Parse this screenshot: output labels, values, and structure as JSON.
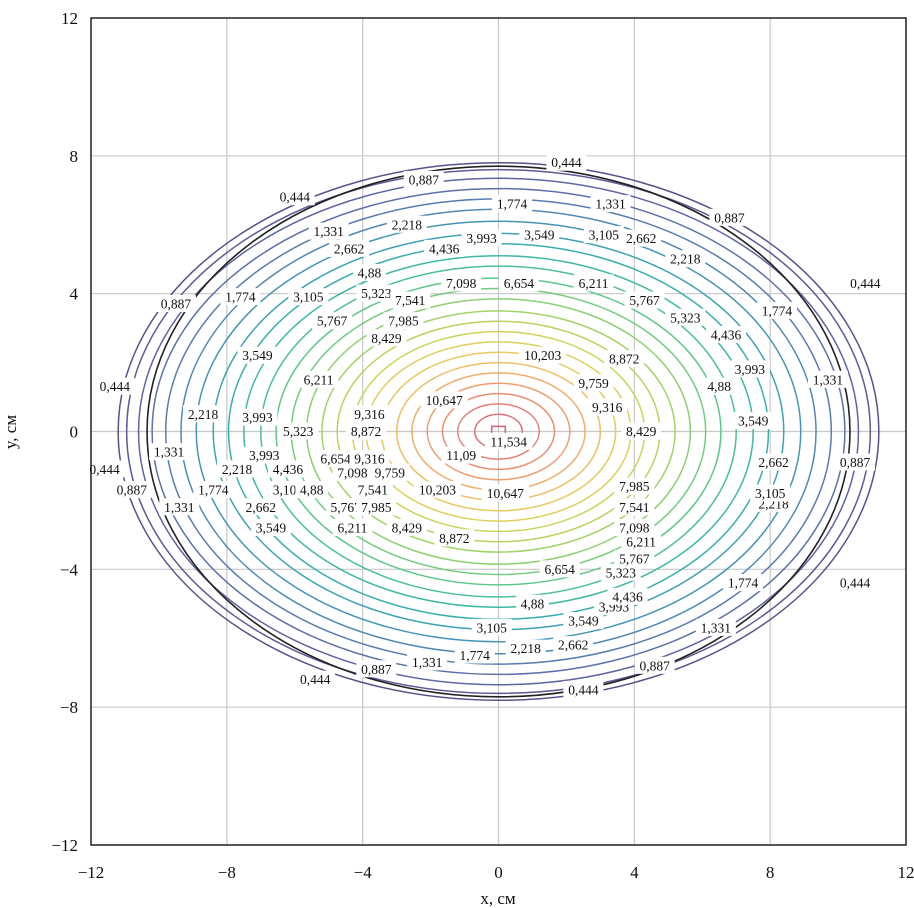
{
  "chart_data": {
    "type": "contour",
    "xlabel": "x, см",
    "ylabel": "y, см",
    "xlim": [
      -12,
      12
    ],
    "ylim": [
      -12,
      12
    ],
    "x_ticks": [
      "−12",
      "−8",
      "−4",
      "0",
      "4",
      "8",
      "12"
    ],
    "y_ticks": [
      "12",
      "8",
      "4",
      "0",
      "−4",
      "−8",
      "−12"
    ],
    "grid": true,
    "center": [
      0,
      0
    ],
    "max_value": 11.534,
    "levels": [
      {
        "value": 0.444,
        "label": "0,444",
        "rx": 11.2,
        "ry": 7.8,
        "color": "#5a4f8a"
      },
      {
        "value": 0.887,
        "label": "0,887",
        "rx": 10.95,
        "ry": 7.6,
        "color": "#5e5a96"
      },
      {
        "value": 1.331,
        "label": "1,331",
        "rx": 10.6,
        "ry": 7.35,
        "color": "#5f64a2"
      },
      {
        "value": 1.774,
        "label": "1,774",
        "rx": 10.2,
        "ry": 7.05,
        "color": "#5d70aa"
      },
      {
        "value": 2.218,
        "label": "2,218",
        "rx": 9.8,
        "ry": 6.75,
        "color": "#577cb0"
      },
      {
        "value": 2.662,
        "label": "2,662",
        "rx": 9.35,
        "ry": 6.45,
        "color": "#4f89b4"
      },
      {
        "value": 3.105,
        "label": "3,105",
        "rx": 8.9,
        "ry": 6.1,
        "color": "#4695b6"
      },
      {
        "value": 3.549,
        "label": "3,549",
        "rx": 8.4,
        "ry": 5.75,
        "color": "#3ea2b4"
      },
      {
        "value": 3.993,
        "label": "3,993",
        "rx": 7.95,
        "ry": 5.45,
        "color": "#3aaeae"
      },
      {
        "value": 4.436,
        "label": "4,436",
        "rx": 7.5,
        "ry": 5.1,
        "color": "#3eb8a4"
      },
      {
        "value": 4.88,
        "label": "4,88",
        "rx": 7.0,
        "ry": 4.8,
        "color": "#4ac098"
      },
      {
        "value": 5.323,
        "label": "5,323",
        "rx": 6.55,
        "ry": 4.45,
        "color": "#5cc78a"
      },
      {
        "value": 5.767,
        "label": "5,767",
        "rx": 6.1,
        "ry": 4.15,
        "color": "#72cc7c"
      },
      {
        "value": 6.211,
        "label": "6,211",
        "rx": 5.65,
        "ry": 3.85,
        "color": "#8ad070"
      },
      {
        "value": 6.654,
        "label": "6,654",
        "rx": 5.2,
        "ry": 3.5,
        "color": "#a2d366"
      },
      {
        "value": 7.098,
        "label": "7,098",
        "rx": 4.75,
        "ry": 3.2,
        "color": "#b8d45e"
      },
      {
        "value": 7.541,
        "label": "7,541",
        "rx": 4.3,
        "ry": 2.9,
        "color": "#ccd35a"
      },
      {
        "value": 7.985,
        "label": "7,985",
        "rx": 3.9,
        "ry": 2.6,
        "color": "#dcd05a"
      },
      {
        "value": 8.429,
        "label": "8,429",
        "rx": 3.45,
        "ry": 2.3,
        "color": "#e8c95e"
      },
      {
        "value": 8.872,
        "label": "8,872",
        "rx": 3.0,
        "ry": 2.0,
        "color": "#eebd64"
      },
      {
        "value": 9.316,
        "label": "9,316",
        "rx": 2.55,
        "ry": 1.7,
        "color": "#f0ae6a"
      },
      {
        "value": 9.759,
        "label": "9,759",
        "rx": 2.1,
        "ry": 1.4,
        "color": "#ee9e70"
      },
      {
        "value": 10.203,
        "label": "10,203",
        "rx": 1.65,
        "ry": 1.1,
        "color": "#ea8e74"
      },
      {
        "value": 10.647,
        "label": "10,647",
        "rx": 1.2,
        "ry": 0.8,
        "color": "#e48078"
      },
      {
        "value": 11.09,
        "label": "11,09",
        "rx": 0.7,
        "ry": 0.5,
        "color": "#dc727a"
      },
      {
        "value": 11.534,
        "label": "11,534",
        "rx": 0.2,
        "ry": 0.15,
        "color": "#d4687c"
      }
    ],
    "contour_labels": [
      {
        "text": "0,444",
        "x": 2.0,
        "y": 7.8
      },
      {
        "text": "0,444",
        "x": -6.0,
        "y": 6.8
      },
      {
        "text": "0,444",
        "x": 10.8,
        "y": 4.3
      },
      {
        "text": "0,444",
        "x": -11.3,
        "y": 1.3
      },
      {
        "text": "0,444",
        "x": -11.6,
        "y": -1.1
      },
      {
        "text": "0,444",
        "x": 10.5,
        "y": -4.4
      },
      {
        "text": "0,444",
        "x": -5.4,
        "y": -7.2
      },
      {
        "text": "0,444",
        "x": 2.5,
        "y": -7.5
      },
      {
        "text": "0,887",
        "x": -2.2,
        "y": 7.3
      },
      {
        "text": "0,887",
        "x": 6.8,
        "y": 6.2
      },
      {
        "text": "0,887",
        "x": -9.5,
        "y": 3.7
      },
      {
        "text": "0,887",
        "x": 10.5,
        "y": -0.9
      },
      {
        "text": "0,887",
        "x": -10.8,
        "y": -1.7
      },
      {
        "text": "0,887",
        "x": -3.6,
        "y": -6.9
      },
      {
        "text": "0,887",
        "x": 4.6,
        "y": -6.8
      },
      {
        "text": "1,331",
        "x": 3.3,
        "y": 6.6
      },
      {
        "text": "1,331",
        "x": -5.0,
        "y": 5.8
      },
      {
        "text": "1,331",
        "x": 9.7,
        "y": 1.5
      },
      {
        "text": "1,331",
        "x": -9.7,
        "y": -0.6
      },
      {
        "text": "1,331",
        "x": -9.4,
        "y": -2.2
      },
      {
        "text": "1,331",
        "x": -2.1,
        "y": -6.7
      },
      {
        "text": "1,331",
        "x": 6.4,
        "y": -5.7
      },
      {
        "text": "1,774",
        "x": 0.4,
        "y": 6.6
      },
      {
        "text": "1,774",
        "x": -7.6,
        "y": 3.9
      },
      {
        "text": "1,774",
        "x": 8.2,
        "y": 3.5
      },
      {
        "text": "1,774",
        "x": -8.4,
        "y": -1.7
      },
      {
        "text": "1,774",
        "x": -0.7,
        "y": -6.5
      },
      {
        "text": "1,774",
        "x": 7.2,
        "y": -4.4
      },
      {
        "text": "2,218",
        "x": -2.7,
        "y": 6.0
      },
      {
        "text": "2,218",
        "x": 5.5,
        "y": 5.0
      },
      {
        "text": "2,218",
        "x": -8.7,
        "y": 0.5
      },
      {
        "text": "2,218",
        "x": -7.7,
        "y": -1.1
      },
      {
        "text": "2,218",
        "x": 8.1,
        "y": -2.1
      },
      {
        "text": "2,218",
        "x": 0.8,
        "y": -6.3
      },
      {
        "text": "2,662",
        "x": -4.4,
        "y": 5.3
      },
      {
        "text": "2,662",
        "x": 4.2,
        "y": 5.6
      },
      {
        "text": "2,662",
        "x": 8.1,
        "y": -0.9
      },
      {
        "text": "2,662",
        "x": -7.0,
        "y": -2.2
      },
      {
        "text": "2,662",
        "x": 2.2,
        "y": -6.2
      },
      {
        "text": "3,105",
        "x": 3.1,
        "y": 5.7
      },
      {
        "text": "3,105",
        "x": -5.6,
        "y": 3.9
      },
      {
        "text": "3,105",
        "x": 8.0,
        "y": -1.8
      },
      {
        "text": "3,105",
        "x": -6.2,
        "y": -1.7
      },
      {
        "text": "3,105",
        "x": -0.2,
        "y": -5.7
      },
      {
        "text": "3,549",
        "x": 1.2,
        "y": 5.7
      },
      {
        "text": "3,549",
        "x": -7.1,
        "y": 2.2
      },
      {
        "text": "3,549",
        "x": 7.5,
        "y": 0.3
      },
      {
        "text": "3,549",
        "x": -6.7,
        "y": -2.8
      },
      {
        "text": "3,549",
        "x": 2.5,
        "y": -5.5
      },
      {
        "text": "3,993",
        "x": -0.5,
        "y": 5.6
      },
      {
        "text": "3,993",
        "x": 7.4,
        "y": 1.8
      },
      {
        "text": "3,993",
        "x": -7.1,
        "y": 0.4
      },
      {
        "text": "3,993",
        "x": -6.9,
        "y": -0.7
      },
      {
        "text": "3,993",
        "x": 3.4,
        "y": -5.1
      },
      {
        "text": "4,436",
        "x": -1.6,
        "y": 5.3
      },
      {
        "text": "4,436",
        "x": 6.7,
        "y": 2.8
      },
      {
        "text": "4,436",
        "x": -6.2,
        "y": -1.1
      },
      {
        "text": "4,436",
        "x": 3.8,
        "y": -4.8
      },
      {
        "text": "4,88",
        "x": -3.8,
        "y": 4.6
      },
      {
        "text": "4,88",
        "x": 6.5,
        "y": 1.3
      },
      {
        "text": "4,88",
        "x": -5.5,
        "y": -1.7
      },
      {
        "text": "4,88",
        "x": 1.0,
        "y": -5.0
      },
      {
        "text": "5,323",
        "x": -3.6,
        "y": 4.0
      },
      {
        "text": "5,323",
        "x": 5.5,
        "y": 3.3
      },
      {
        "text": "5,323",
        "x": -5.9,
        "y": 0.0
      },
      {
        "text": "5,323",
        "x": 3.6,
        "y": -4.1
      },
      {
        "text": "5,767",
        "x": -4.9,
        "y": 3.2
      },
      {
        "text": "5,767",
        "x": 4.3,
        "y": 3.8
      },
      {
        "text": "5,767",
        "x": -4.5,
        "y": -2.2
      },
      {
        "text": "5,767",
        "x": 4.0,
        "y": -3.7
      },
      {
        "text": "6,211",
        "x": -5.3,
        "y": 1.5
      },
      {
        "text": "6,211",
        "x": 2.8,
        "y": 4.3
      },
      {
        "text": "6,211",
        "x": -4.3,
        "y": -2.8
      },
      {
        "text": "6,211",
        "x": 4.2,
        "y": -3.2
      },
      {
        "text": "6,654",
        "x": 0.6,
        "y": 4.3
      },
      {
        "text": "6,654",
        "x": -4.8,
        "y": -0.8
      },
      {
        "text": "6,654",
        "x": 1.8,
        "y": -4.0
      },
      {
        "text": "7,098",
        "x": -1.1,
        "y": 4.3
      },
      {
        "text": "7,098",
        "x": -4.3,
        "y": -1.2
      },
      {
        "text": "7,098",
        "x": 4.0,
        "y": -2.8
      },
      {
        "text": "7,541",
        "x": -2.6,
        "y": 3.8
      },
      {
        "text": "7,541",
        "x": -3.7,
        "y": -1.7
      },
      {
        "text": "7,541",
        "x": 4.0,
        "y": -2.2
      },
      {
        "text": "7,985",
        "x": -2.8,
        "y": 3.2
      },
      {
        "text": "7,985",
        "x": -3.6,
        "y": -2.2
      },
      {
        "text": "7,985",
        "x": 4.0,
        "y": -1.6
      },
      {
        "text": "8,429",
        "x": -3.3,
        "y": 2.7
      },
      {
        "text": "8,429",
        "x": 4.2,
        "y": 0.0
      },
      {
        "text": "8,429",
        "x": -2.7,
        "y": -2.8
      },
      {
        "text": "8,872",
        "x": 3.7,
        "y": 2.1
      },
      {
        "text": "8,872",
        "x": -3.9,
        "y": 0.0
      },
      {
        "text": "8,872",
        "x": -1.3,
        "y": -3.1
      },
      {
        "text": "9,316",
        "x": -3.8,
        "y": 0.5
      },
      {
        "text": "9,316",
        "x": 3.2,
        "y": 0.7
      },
      {
        "text": "9,316",
        "x": -3.8,
        "y": -0.8
      },
      {
        "text": "9,759",
        "x": 2.8,
        "y": 1.4
      },
      {
        "text": "9,759",
        "x": -3.2,
        "y": -1.2
      },
      {
        "text": "10,203",
        "x": 1.3,
        "y": 2.2
      },
      {
        "text": "10,203",
        "x": -1.8,
        "y": -1.7
      },
      {
        "text": "10,647",
        "x": -1.6,
        "y": 0.9
      },
      {
        "text": "10,647",
        "x": 0.2,
        "y": -1.8
      },
      {
        "text": "11,09",
        "x": -1.1,
        "y": -0.7
      },
      {
        "text": "11,534",
        "x": 0.3,
        "y": -0.3
      }
    ]
  }
}
